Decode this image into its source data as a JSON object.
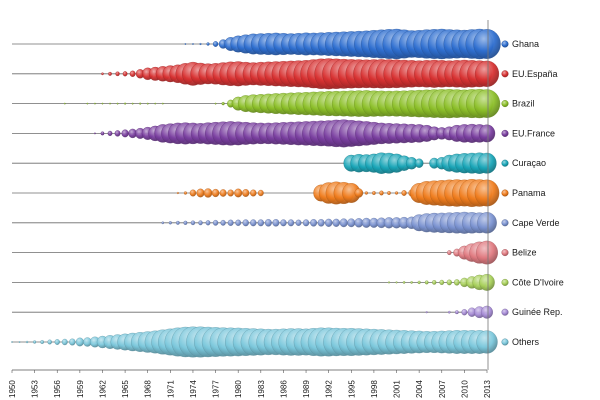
{
  "chart_data": {
    "type": "bubble-timeline",
    "title": "",
    "xlabel": "",
    "ylabel": "",
    "xlim": [
      1950,
      2013
    ],
    "x_ticks": [
      "1950",
      "1953",
      "1956",
      "1959",
      "1962",
      "1965",
      "1968",
      "1971",
      "1974",
      "1977",
      "1980",
      "1983",
      "1986",
      "1989",
      "1992",
      "1995",
      "1998",
      "2001",
      "2004",
      "2007",
      "2010",
      "2013"
    ],
    "legend_position": "right",
    "grid": false,
    "series": [
      {
        "name": "Ghana",
        "color": "#2f6fd0",
        "years": [
          1973,
          1974,
          1975,
          1976,
          1977,
          1978,
          1979,
          1980,
          1981,
          1982,
          1983,
          1984,
          1985,
          1986,
          1987,
          1988,
          1989,
          1990,
          1991,
          1992,
          1993,
          1994,
          1995,
          1996,
          1997,
          1998,
          1999,
          2000,
          2001,
          2002,
          2003,
          2004,
          2005,
          2006,
          2007,
          2008,
          2009,
          2010,
          2011,
          2012,
          2013
        ],
        "values": [
          0.02,
          0.04,
          0.06,
          0.1,
          0.18,
          0.3,
          0.45,
          0.55,
          0.62,
          0.68,
          0.7,
          0.72,
          0.74,
          0.72,
          0.7,
          0.72,
          0.75,
          0.74,
          0.76,
          0.78,
          0.8,
          0.82,
          0.84,
          0.86,
          0.88,
          0.92,
          0.95,
          0.98,
          1.0,
          0.95,
          0.9,
          0.92,
          0.96,
          0.98,
          1.0,
          0.97,
          0.95,
          0.93,
          0.97,
          1.0,
          0.98
        ]
      },
      {
        "name": "EU.España",
        "color": "#d83232",
        "years": [
          1962,
          1963,
          1964,
          1965,
          1966,
          1967,
          1968,
          1969,
          1970,
          1971,
          1972,
          1973,
          1974,
          1975,
          1976,
          1977,
          1978,
          1979,
          1980,
          1981,
          1982,
          1983,
          1984,
          1985,
          1986,
          1987,
          1988,
          1989,
          1990,
          1991,
          1992,
          1993,
          1994,
          1995,
          1996,
          1997,
          1998,
          1999,
          2000,
          2001,
          2002,
          2003,
          2004,
          2005,
          2006,
          2007,
          2008,
          2009,
          2010,
          2011,
          2012,
          2013
        ],
        "values": [
          0.08,
          0.12,
          0.14,
          0.16,
          0.2,
          0.3,
          0.4,
          0.45,
          0.5,
          0.55,
          0.6,
          0.7,
          0.78,
          0.72,
          0.68,
          0.7,
          0.75,
          0.8,
          0.82,
          0.78,
          0.75,
          0.78,
          0.8,
          0.82,
          0.84,
          0.86,
          0.88,
          0.9,
          0.95,
          1.0,
          1.02,
          1.0,
          0.98,
          0.96,
          0.95,
          0.94,
          0.95,
          0.96,
          0.95,
          0.94,
          0.92,
          0.9,
          0.88,
          0.9,
          0.92,
          0.9,
          0.88,
          0.9,
          0.92,
          0.9,
          0.88,
          0.86
        ]
      },
      {
        "name": "Brazil",
        "color": "#8dc02a",
        "years": [
          1957,
          1960,
          1961,
          1962,
          1963,
          1964,
          1965,
          1966,
          1967,
          1968,
          1969,
          1970,
          1977,
          1978,
          1979,
          1980,
          1981,
          1982,
          1983,
          1984,
          1985,
          1986,
          1987,
          1988,
          1989,
          1990,
          1991,
          1992,
          1993,
          1994,
          1995,
          1996,
          1997,
          1998,
          1999,
          2000,
          2001,
          2002,
          2003,
          2004,
          2005,
          2006,
          2007,
          2008,
          2009,
          2010,
          2011,
          2012,
          2013
        ],
        "values": [
          0.02,
          0.02,
          0.03,
          0.03,
          0.04,
          0.05,
          0.06,
          0.05,
          0.06,
          0.05,
          0.04,
          0.03,
          0.05,
          0.1,
          0.25,
          0.45,
          0.55,
          0.6,
          0.62,
          0.65,
          0.68,
          0.7,
          0.72,
          0.74,
          0.76,
          0.78,
          0.8,
          0.82,
          0.83,
          0.84,
          0.86,
          0.87,
          0.88,
          0.86,
          0.85,
          0.84,
          0.85,
          0.86,
          0.88,
          0.9,
          0.92,
          0.94,
          0.95,
          0.96,
          0.94,
          0.92,
          0.95,
          0.96,
          0.94
        ]
      },
      {
        "name": "EU.France",
        "color": "#7a3fa0",
        "years": [
          1961,
          1962,
          1963,
          1964,
          1965,
          1966,
          1967,
          1968,
          1969,
          1970,
          1971,
          1972,
          1973,
          1974,
          1975,
          1976,
          1977,
          1978,
          1979,
          1980,
          1981,
          1982,
          1983,
          1984,
          1985,
          1986,
          1987,
          1988,
          1989,
          1990,
          1991,
          1992,
          1993,
          1994,
          1995,
          1996,
          1997,
          1998,
          1999,
          2000,
          2001,
          2002,
          2003,
          2004,
          2005,
          2006,
          2007,
          2008,
          2009,
          2010,
          2011,
          2012,
          2013
        ],
        "values": [
          0.05,
          0.12,
          0.16,
          0.2,
          0.25,
          0.3,
          0.35,
          0.42,
          0.5,
          0.6,
          0.65,
          0.7,
          0.72,
          0.7,
          0.68,
          0.72,
          0.75,
          0.78,
          0.8,
          0.78,
          0.75,
          0.72,
          0.7,
          0.7,
          0.72,
          0.74,
          0.76,
          0.78,
          0.8,
          0.82,
          0.84,
          0.86,
          0.9,
          0.92,
          0.88,
          0.84,
          0.8,
          0.75,
          0.7,
          0.68,
          0.66,
          0.64,
          0.62,
          0.6,
          0.55,
          0.45,
          0.4,
          0.45,
          0.55,
          0.6,
          0.62,
          0.6,
          0.58
        ]
      },
      {
        "name": "Curaçao",
        "color": "#1aa6b8",
        "years": [
          1995,
          1996,
          1997,
          1998,
          1999,
          2000,
          2001,
          2002,
          2003,
          2004,
          2006,
          2007,
          2008,
          2009,
          2010,
          2011,
          2012,
          2013
        ],
        "values": [
          0.55,
          0.6,
          0.58,
          0.62,
          0.7,
          0.68,
          0.62,
          0.5,
          0.4,
          0.3,
          0.35,
          0.4,
          0.55,
          0.62,
          0.66,
          0.68,
          0.7,
          0.68
        ]
      },
      {
        "name": "Panama",
        "color": "#f07d1e",
        "years": [
          1972,
          1973,
          1974,
          1975,
          1976,
          1977,
          1978,
          1979,
          1980,
          1981,
          1982,
          1983,
          1991,
          1992,
          1993,
          1994,
          1995,
          1996,
          1997,
          1998,
          1999,
          2000,
          2001,
          2002,
          2003,
          2004,
          2005,
          2006,
          2007,
          2008,
          2009,
          2010,
          2011,
          2012,
          2013
        ],
        "values": [
          0.06,
          0.1,
          0.22,
          0.28,
          0.3,
          0.26,
          0.24,
          0.22,
          0.28,
          0.25,
          0.22,
          0.2,
          0.55,
          0.7,
          0.75,
          0.72,
          0.65,
          0.3,
          0.1,
          0.12,
          0.15,
          0.12,
          0.1,
          0.18,
          0.22,
          0.65,
          0.78,
          0.82,
          0.85,
          0.88,
          0.9,
          0.88,
          0.92,
          0.9,
          0.88
        ]
      },
      {
        "name": "Cape Verde",
        "color": "#7b93d1",
        "years": [
          1970,
          1971,
          1972,
          1973,
          1974,
          1975,
          1976,
          1977,
          1978,
          1979,
          1980,
          1981,
          1982,
          1983,
          1984,
          1985,
          1986,
          1987,
          1988,
          1989,
          1990,
          1991,
          1992,
          1993,
          1994,
          1995,
          1996,
          1997,
          1998,
          1999,
          2000,
          2001,
          2002,
          2003,
          2004,
          2005,
          2006,
          2007,
          2008,
          2009,
          2010,
          2011,
          2012,
          2013
        ],
        "values": [
          0.08,
          0.1,
          0.12,
          0.13,
          0.14,
          0.15,
          0.16,
          0.18,
          0.18,
          0.2,
          0.2,
          0.22,
          0.22,
          0.22,
          0.24,
          0.24,
          0.22,
          0.22,
          0.2,
          0.22,
          0.24,
          0.24,
          0.26,
          0.26,
          0.28,
          0.28,
          0.3,
          0.32,
          0.32,
          0.34,
          0.36,
          0.36,
          0.38,
          0.4,
          0.55,
          0.62,
          0.65,
          0.66,
          0.68,
          0.7,
          0.72,
          0.7,
          0.68,
          0.7
        ]
      },
      {
        "name": "Belize",
        "color": "#e07a80",
        "years": [
          2008,
          2009,
          2010,
          2011,
          2012,
          2013
        ],
        "values": [
          0.15,
          0.25,
          0.45,
          0.6,
          0.72,
          0.78
        ]
      },
      {
        "name": "Côte D'Ivoire",
        "color": "#a8d05a",
        "years": [
          2000,
          2001,
          2002,
          2003,
          2004,
          2005,
          2006,
          2007,
          2008,
          2009,
          2010,
          2011,
          2012,
          2013
        ],
        "values": [
          0.06,
          0.06,
          0.08,
          0.08,
          0.1,
          0.12,
          0.14,
          0.16,
          0.18,
          0.2,
          0.3,
          0.4,
          0.5,
          0.55
        ]
      },
      {
        "name": "Guinée Rep.",
        "color": "#a68bd6",
        "years": [
          2005,
          2008,
          2009,
          2010,
          2011,
          2012,
          2013
        ],
        "values": [
          0.06,
          0.08,
          0.12,
          0.2,
          0.3,
          0.38,
          0.42
        ]
      },
      {
        "name": "Others",
        "color": "#7cc8dc",
        "years": [
          1950,
          1951,
          1952,
          1953,
          1954,
          1955,
          1956,
          1957,
          1958,
          1959,
          1960,
          1961,
          1962,
          1963,
          1964,
          1965,
          1966,
          1967,
          1968,
          1969,
          1970,
          1971,
          1972,
          1973,
          1974,
          1975,
          1976,
          1977,
          1978,
          1979,
          1980,
          1981,
          1982,
          1983,
          1984,
          1985,
          1986,
          1987,
          1988,
          1989,
          1990,
          1991,
          1992,
          1993,
          1994,
          1995,
          1996,
          1997,
          1998,
          1999,
          2000,
          2001,
          2002,
          2003,
          2004,
          2005,
          2006,
          2007,
          2008,
          2009,
          2010,
          2011,
          2012,
          2013
        ],
        "values": [
          0.03,
          0.05,
          0.07,
          0.1,
          0.12,
          0.15,
          0.18,
          0.2,
          0.22,
          0.28,
          0.3,
          0.35,
          0.4,
          0.45,
          0.5,
          0.55,
          0.6,
          0.65,
          0.7,
          0.75,
          0.82,
          0.88,
          0.95,
          1.0,
          1.02,
          1.02,
          1.0,
          0.98,
          0.96,
          0.95,
          0.94,
          0.92,
          0.9,
          0.88,
          0.86,
          0.86,
          0.88,
          0.9,
          0.9,
          0.88,
          0.92,
          0.95,
          0.95,
          0.93,
          0.92,
          0.92,
          0.9,
          0.88,
          0.86,
          0.84,
          0.82,
          0.8,
          0.78,
          0.76,
          0.74,
          0.72,
          0.72,
          0.74,
          0.76,
          0.78,
          0.78,
          0.78,
          0.78,
          0.76
        ]
      }
    ]
  }
}
